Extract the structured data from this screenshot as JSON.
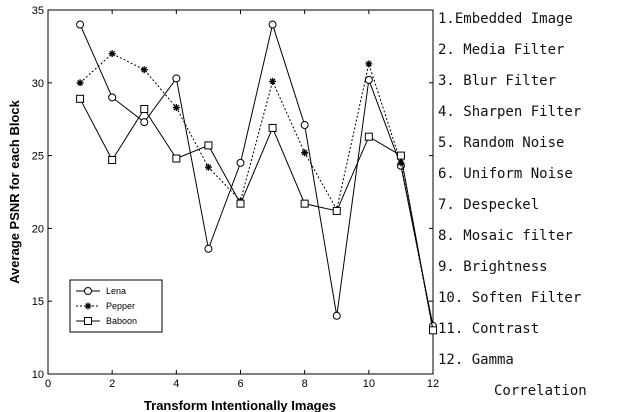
{
  "chart_data": {
    "type": "line",
    "xlabel": "Transform Intentionally Images",
    "ylabel": "Average PSNR for each Block",
    "xlim": [
      0,
      12
    ],
    "ylim": [
      10,
      35
    ],
    "xticks": [
      0,
      2,
      4,
      6,
      8,
      10,
      12
    ],
    "yticks": [
      10,
      15,
      20,
      25,
      30,
      35
    ],
    "grid": false,
    "legend_position": "bottom-left",
    "x": [
      1,
      2,
      3,
      4,
      5,
      6,
      7,
      8,
      9,
      10,
      11,
      12
    ],
    "series": [
      {
        "name": "Lena",
        "marker": "circle",
        "line": "solid",
        "values": [
          34.0,
          29.0,
          27.3,
          30.3,
          18.6,
          24.5,
          34.0,
          27.1,
          14.0,
          30.2,
          24.3,
          13.3
        ]
      },
      {
        "name": "Pepper",
        "marker": "star",
        "line": "dotted",
        "values": [
          30.0,
          32.0,
          30.9,
          28.3,
          24.2,
          21.9,
          30.1,
          25.2,
          21.3,
          31.3,
          24.5,
          13.0
        ]
      },
      {
        "name": "Baboon",
        "marker": "square",
        "line": "solid",
        "values": [
          28.9,
          24.7,
          28.2,
          24.8,
          25.7,
          21.7,
          26.9,
          21.7,
          21.2,
          26.3,
          25.0,
          13.0
        ]
      }
    ]
  },
  "side_list": [
    {
      "text": "1.Embedded Image"
    },
    {
      "text": "2. Media Filter"
    },
    {
      "text": "3. Blur Filter"
    },
    {
      "text": "4. Sharpen Filter"
    },
    {
      "text": "5. Random Noise"
    },
    {
      "text": "6. Uniform Noise"
    },
    {
      "text": "7. Despeckel"
    },
    {
      "text": "8. Mosaic filter"
    },
    {
      "text": "9. Brightness"
    },
    {
      "text": "10. Soften Filter"
    },
    {
      "text": "11. Contrast"
    },
    {
      "text": "12. Gamma"
    },
    {
      "text": "Correlation",
      "continuation": true
    }
  ]
}
